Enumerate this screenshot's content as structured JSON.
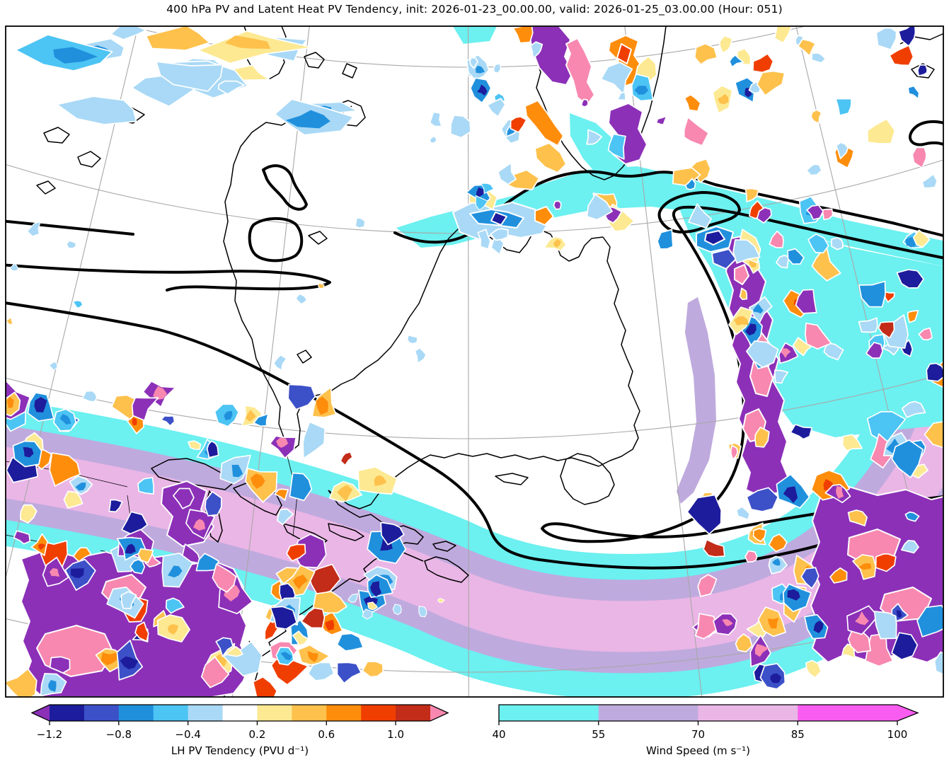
{
  "title": "400 hPa PV and Latent Heat PV Tendency, init: 2026-01-23_00.00.00, valid: 2026-01-25_03.00.00 (Hour: 051)",
  "chart_data": {
    "type": "heatmap",
    "subtype": "weather-map-filled-contours",
    "field_contours": "400 hPa potential vorticity (thick black contours)",
    "field_fill_1": "Latent heat PV tendency (diverging blue-red filled blobs)",
    "field_fill_2": "Wind speed (cyan-lavender-pink jet-streak bands)",
    "init": "2026-01-23_00.00.00",
    "valid": "2026-01-25_03.00.00",
    "forecast_hour": "051",
    "region": "Eastern North America, Greenland and Northwest Atlantic (polar projection)",
    "lh_colorbar": {
      "label": "LH PV Tendency (PVU d⁻¹)",
      "tick_labels": [
        "−1.2",
        "−0.8",
        "−0.4",
        "0.2",
        "0.6",
        "1.0"
      ],
      "tick_boundary_indices": [
        0,
        2,
        4,
        6,
        8,
        10
      ],
      "levels": [
        -1.2,
        -1.0,
        -0.8,
        -0.6,
        -0.4,
        -0.2,
        0.2,
        0.4,
        0.6,
        0.8,
        1.0,
        1.2
      ],
      "colors": [
        "#1c1c9c",
        "#3c50c8",
        "#2090dd",
        "#4cc4f4",
        "#a9d9f6",
        "#ffffff",
        "#fde992",
        "#fdc14c",
        "#fe8d0c",
        "#f03e00",
        "#c22c18"
      ],
      "under_color": "#8c30b8",
      "over_color": "#f888b0",
      "extend": "both"
    },
    "wind_colorbar": {
      "label": "Wind Speed (m s⁻¹)",
      "tick_labels": [
        "40",
        "55",
        "70",
        "85",
        "100"
      ],
      "levels": [
        40,
        55,
        70,
        85,
        100
      ],
      "colors": [
        "#6cf0f0",
        "#bfaade",
        "#eab6e6",
        "#f95cf0"
      ],
      "extend": "max"
    },
    "map_features": {
      "jet_streak": "comma-shaped wind-speed maximum sweeping from the Great Lakes across the western Atlantic and curving north along the storm's eastern flank",
      "pv_structure": "thick PV contours form a band south of Greenland with a bent-back hook south of Newfoundland and a closed PV island over the Labrador Sea",
      "lh_tendency_clusters": [
        "Great Lakes / US Northeast dipole mosaic",
        "bent-back front east of Newfoundland with strong negative (purple) core",
        "southern Greenland and Davis Strait scattered dipoles",
        "weak streaks over northwestern Canada"
      ]
    }
  }
}
